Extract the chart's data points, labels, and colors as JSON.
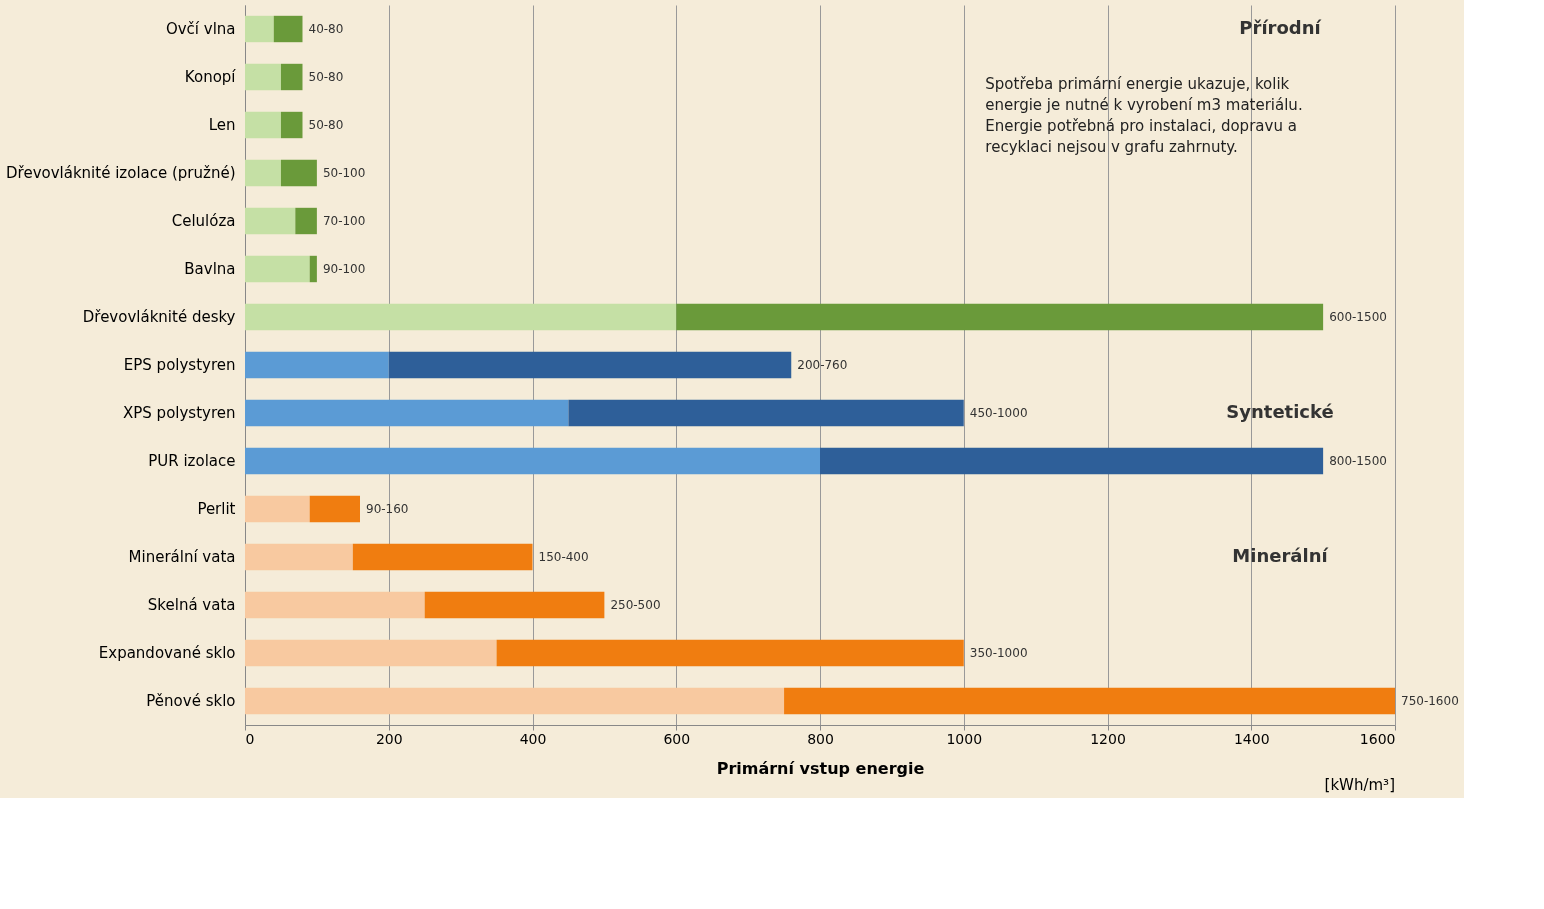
{
  "chart_data": {
    "type": "bar",
    "orientation": "horizontal",
    "stacked": true,
    "categories": [
      "Ovčí vlna",
      "Konopí",
      "Len",
      "Dřevovláknité izolace (pružné)",
      "Celulóza",
      "Bavlna",
      "Dřevovláknité desky",
      "EPS polystyren",
      "XPS polystyren",
      "PUR izolace",
      "Perlit",
      "Minerální vata",
      "Skelná vata",
      "Expandované sklo",
      "Pěnové sklo"
    ],
    "series": [
      {
        "colors": [
          "#c5e0a5",
          "#c5e0a5",
          "#c5e0a5",
          "#c5e0a5",
          "#c5e0a5",
          "#c5e0a5",
          "#c5e0a5",
          "#5b9bd5",
          "#5b9bd5",
          "#5b9bd5",
          "#f8c9a0",
          "#f8c9a0",
          "#f8c9a0",
          "#f8c9a0",
          "#f8c9a0"
        ],
        "values": [
          40,
          50,
          50,
          50,
          70,
          90,
          600,
          200,
          450,
          800,
          90,
          150,
          250,
          350,
          750
        ]
      },
      {
        "colors": [
          "#6a9a3a",
          "#6a9a3a",
          "#6a9a3a",
          "#6a9a3a",
          "#6a9a3a",
          "#6a9a3a",
          "#6a9a3a",
          "#2e5f99",
          "#2e5f99",
          "#2e5f99",
          "#f07d10",
          "#f07d10",
          "#f07d10",
          "#f07d10",
          "#f07d10"
        ],
        "values": [
          40,
          30,
          30,
          50,
          30,
          10,
          900,
          560,
          550,
          700,
          70,
          250,
          250,
          650,
          850
        ],
        "value_labels": [
          "40-80",
          "50-80",
          "50-80",
          "50-100",
          "70-100",
          "90-100",
          "600-1500",
          "200-760",
          "450-1000",
          "800-1500",
          "90-160",
          "150-400",
          "250-500",
          "350-1000",
          "750-1600"
        ]
      }
    ],
    "xlabel": "Primární vstup energie",
    "xlim": [
      0,
      1600
    ],
    "xticks": [
      0,
      200,
      400,
      600,
      800,
      1000,
      1200,
      1400,
      1600
    ],
    "grid": "x",
    "annotations": [
      "Spotřeba primární energie ukazuje, kolik energie je nutné k vyrobení m3 materiálu. Energie potřebná pro instalaci, dopravu a recyklaci nejsou v grafu zahrnuty.",
      "Přírodní",
      "Syntetické",
      "Minerální",
      "[kWh/m³]"
    ]
  }
}
